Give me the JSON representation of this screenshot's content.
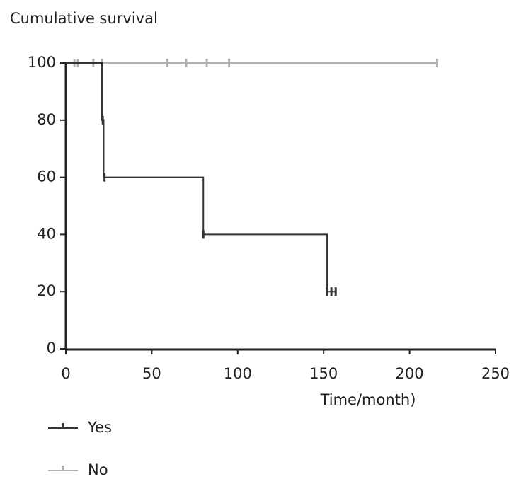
{
  "chart_data": {
    "type": "line",
    "y_label": "Cumulative survival",
    "x_label": "Time/month)",
    "xlim": [
      0,
      250
    ],
    "xticks": [
      0,
      50,
      100,
      150,
      200,
      250
    ],
    "ylim": [
      0,
      100
    ],
    "yticks": [
      0,
      20,
      40,
      60,
      80,
      100
    ],
    "legend": "bottom-left",
    "series": [
      {
        "name": "Yes",
        "color": "#333333",
        "x": [
          0,
          21,
          21,
          22,
          22,
          80,
          80,
          152,
          152,
          157
        ],
        "values": [
          100,
          100,
          80,
          80,
          60,
          60,
          40,
          40,
          20,
          20
        ],
        "censor_x": [
          21.5,
          22.5,
          80,
          152,
          154.5,
          157
        ],
        "censor_values": [
          80,
          60,
          40,
          20,
          20,
          20
        ]
      },
      {
        "name": "No",
        "color": "#b0b0b0",
        "x": [
          0,
          216
        ],
        "values": [
          100,
          100
        ],
        "censor_x": [
          5,
          7,
          16,
          21,
          59,
          70,
          82,
          95,
          216
        ],
        "censor_values": [
          100,
          100,
          100,
          100,
          100,
          100,
          100,
          100,
          100
        ]
      }
    ]
  }
}
